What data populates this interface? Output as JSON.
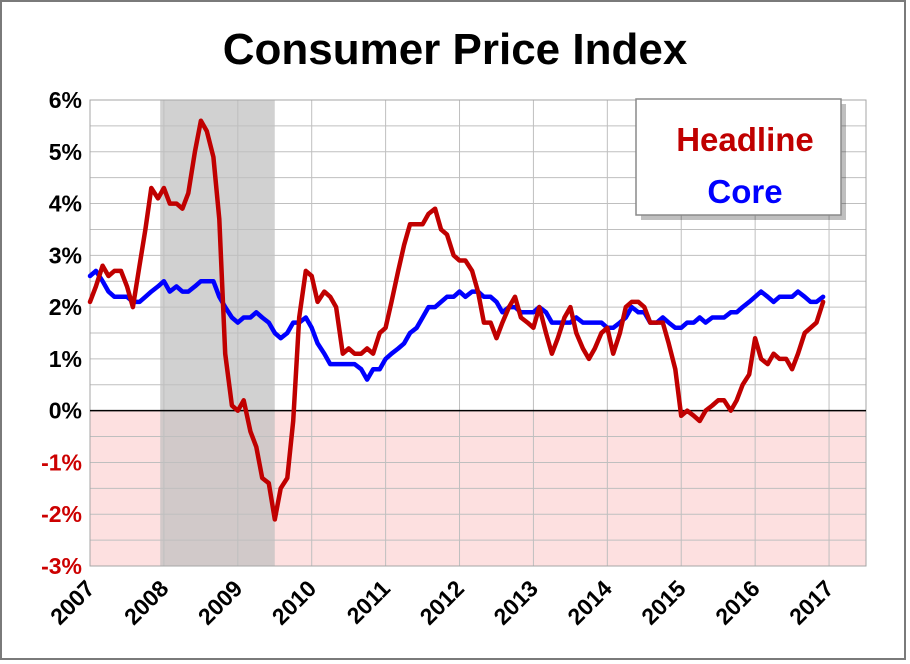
{
  "chart_data": {
    "type": "line",
    "title": "Consumer Price Index",
    "xlabel": "",
    "ylabel": "",
    "x_ticks": [
      "2007",
      "2008",
      "2009",
      "2010",
      "2011",
      "2012",
      "2013",
      "2014",
      "2015",
      "2016",
      "2017"
    ],
    "y_ticks": [
      "6%",
      "5%",
      "4%",
      "3%",
      "2%",
      "1%",
      "0%",
      "-1%",
      "-2%",
      "-3%"
    ],
    "xlim": [
      2007,
      2017.5
    ],
    "ylim": [
      -3,
      6
    ],
    "grid": true,
    "legend_position": "top-right",
    "negative_region_color": "#fde0e0",
    "negative_label_color": "#cc0000",
    "recession_shading": {
      "start": 2007.95,
      "end": 2009.5,
      "color": "#bfbfbf"
    },
    "series": [
      {
        "name": "Headline",
        "color": "#c00000",
        "points": [
          [
            2007.0,
            2.1
          ],
          [
            2007.08,
            2.4
          ],
          [
            2007.17,
            2.8
          ],
          [
            2007.25,
            2.6
          ],
          [
            2007.33,
            2.7
          ],
          [
            2007.42,
            2.7
          ],
          [
            2007.5,
            2.4
          ],
          [
            2007.58,
            2.0
          ],
          [
            2007.67,
            2.8
          ],
          [
            2007.75,
            3.5
          ],
          [
            2007.83,
            4.3
          ],
          [
            2007.92,
            4.1
          ],
          [
            2008.0,
            4.3
          ],
          [
            2008.08,
            4.0
          ],
          [
            2008.17,
            4.0
          ],
          [
            2008.25,
            3.9
          ],
          [
            2008.33,
            4.2
          ],
          [
            2008.42,
            5.0
          ],
          [
            2008.5,
            5.6
          ],
          [
            2008.58,
            5.4
          ],
          [
            2008.67,
            4.9
          ],
          [
            2008.75,
            3.7
          ],
          [
            2008.83,
            1.1
          ],
          [
            2008.92,
            0.1
          ],
          [
            2009.0,
            0.0
          ],
          [
            2009.08,
            0.2
          ],
          [
            2009.17,
            -0.4
          ],
          [
            2009.25,
            -0.7
          ],
          [
            2009.33,
            -1.3
          ],
          [
            2009.42,
            -1.4
          ],
          [
            2009.5,
            -2.1
          ],
          [
            2009.58,
            -1.5
          ],
          [
            2009.67,
            -1.3
          ],
          [
            2009.75,
            -0.2
          ],
          [
            2009.83,
            1.8
          ],
          [
            2009.92,
            2.7
          ],
          [
            2010.0,
            2.6
          ],
          [
            2010.08,
            2.1
          ],
          [
            2010.17,
            2.3
          ],
          [
            2010.25,
            2.2
          ],
          [
            2010.33,
            2.0
          ],
          [
            2010.42,
            1.1
          ],
          [
            2010.5,
            1.2
          ],
          [
            2010.58,
            1.1
          ],
          [
            2010.67,
            1.1
          ],
          [
            2010.75,
            1.2
          ],
          [
            2010.83,
            1.1
          ],
          [
            2010.92,
            1.5
          ],
          [
            2011.0,
            1.6
          ],
          [
            2011.08,
            2.1
          ],
          [
            2011.17,
            2.7
          ],
          [
            2011.25,
            3.2
          ],
          [
            2011.33,
            3.6
          ],
          [
            2011.42,
            3.6
          ],
          [
            2011.5,
            3.6
          ],
          [
            2011.58,
            3.8
          ],
          [
            2011.67,
            3.9
          ],
          [
            2011.75,
            3.5
          ],
          [
            2011.83,
            3.4
          ],
          [
            2011.92,
            3.0
          ],
          [
            2012.0,
            2.9
          ],
          [
            2012.08,
            2.9
          ],
          [
            2012.17,
            2.7
          ],
          [
            2012.25,
            2.3
          ],
          [
            2012.33,
            1.7
          ],
          [
            2012.42,
            1.7
          ],
          [
            2012.5,
            1.4
          ],
          [
            2012.58,
            1.7
          ],
          [
            2012.67,
            2.0
          ],
          [
            2012.75,
            2.2
          ],
          [
            2012.83,
            1.8
          ],
          [
            2012.92,
            1.7
          ],
          [
            2013.0,
            1.6
          ],
          [
            2013.08,
            2.0
          ],
          [
            2013.17,
            1.5
          ],
          [
            2013.25,
            1.1
          ],
          [
            2013.33,
            1.4
          ],
          [
            2013.42,
            1.8
          ],
          [
            2013.5,
            2.0
          ],
          [
            2013.58,
            1.5
          ],
          [
            2013.67,
            1.2
          ],
          [
            2013.75,
            1.0
          ],
          [
            2013.83,
            1.2
          ],
          [
            2013.92,
            1.5
          ],
          [
            2014.0,
            1.6
          ],
          [
            2014.08,
            1.1
          ],
          [
            2014.17,
            1.5
          ],
          [
            2014.25,
            2.0
          ],
          [
            2014.33,
            2.1
          ],
          [
            2014.42,
            2.1
          ],
          [
            2014.5,
            2.0
          ],
          [
            2014.58,
            1.7
          ],
          [
            2014.67,
            1.7
          ],
          [
            2014.75,
            1.7
          ],
          [
            2014.83,
            1.3
          ],
          [
            2014.92,
            0.8
          ],
          [
            2015.0,
            -0.1
          ],
          [
            2015.08,
            0.0
          ],
          [
            2015.17,
            -0.1
          ],
          [
            2015.25,
            -0.2
          ],
          [
            2015.33,
            0.0
          ],
          [
            2015.42,
            0.1
          ],
          [
            2015.5,
            0.2
          ],
          [
            2015.58,
            0.2
          ],
          [
            2015.67,
            0.0
          ],
          [
            2015.75,
            0.2
          ],
          [
            2015.83,
            0.5
          ],
          [
            2015.92,
            0.7
          ],
          [
            2016.0,
            1.4
          ],
          [
            2016.08,
            1.0
          ],
          [
            2016.17,
            0.9
          ],
          [
            2016.25,
            1.1
          ],
          [
            2016.33,
            1.0
          ],
          [
            2016.42,
            1.0
          ],
          [
            2016.5,
            0.8
          ],
          [
            2016.58,
            1.1
          ],
          [
            2016.67,
            1.5
          ],
          [
            2016.75,
            1.6
          ],
          [
            2016.83,
            1.7
          ],
          [
            2016.92,
            2.1
          ]
        ]
      },
      {
        "name": "Core",
        "color": "#0000ff",
        "points": [
          [
            2007.0,
            2.6
          ],
          [
            2007.08,
            2.7
          ],
          [
            2007.17,
            2.5
          ],
          [
            2007.25,
            2.3
          ],
          [
            2007.33,
            2.2
          ],
          [
            2007.42,
            2.2
          ],
          [
            2007.5,
            2.2
          ],
          [
            2007.58,
            2.1
          ],
          [
            2007.67,
            2.1
          ],
          [
            2007.75,
            2.2
          ],
          [
            2007.83,
            2.3
          ],
          [
            2007.92,
            2.4
          ],
          [
            2008.0,
            2.5
          ],
          [
            2008.08,
            2.3
          ],
          [
            2008.17,
            2.4
          ],
          [
            2008.25,
            2.3
          ],
          [
            2008.33,
            2.3
          ],
          [
            2008.42,
            2.4
          ],
          [
            2008.5,
            2.5
          ],
          [
            2008.58,
            2.5
          ],
          [
            2008.67,
            2.5
          ],
          [
            2008.75,
            2.2
          ],
          [
            2008.83,
            2.0
          ],
          [
            2008.92,
            1.8
          ],
          [
            2009.0,
            1.7
          ],
          [
            2009.08,
            1.8
          ],
          [
            2009.17,
            1.8
          ],
          [
            2009.25,
            1.9
          ],
          [
            2009.33,
            1.8
          ],
          [
            2009.42,
            1.7
          ],
          [
            2009.5,
            1.5
          ],
          [
            2009.58,
            1.4
          ],
          [
            2009.67,
            1.5
          ],
          [
            2009.75,
            1.7
          ],
          [
            2009.83,
            1.7
          ],
          [
            2009.92,
            1.8
          ],
          [
            2010.0,
            1.6
          ],
          [
            2010.08,
            1.3
          ],
          [
            2010.17,
            1.1
          ],
          [
            2010.25,
            0.9
          ],
          [
            2010.33,
            0.9
          ],
          [
            2010.42,
            0.9
          ],
          [
            2010.5,
            0.9
          ],
          [
            2010.58,
            0.9
          ],
          [
            2010.67,
            0.8
          ],
          [
            2010.75,
            0.6
          ],
          [
            2010.83,
            0.8
          ],
          [
            2010.92,
            0.8
          ],
          [
            2011.0,
            1.0
          ],
          [
            2011.08,
            1.1
          ],
          [
            2011.17,
            1.2
          ],
          [
            2011.25,
            1.3
          ],
          [
            2011.33,
            1.5
          ],
          [
            2011.42,
            1.6
          ],
          [
            2011.5,
            1.8
          ],
          [
            2011.58,
            2.0
          ],
          [
            2011.67,
            2.0
          ],
          [
            2011.75,
            2.1
          ],
          [
            2011.83,
            2.2
          ],
          [
            2011.92,
            2.2
          ],
          [
            2012.0,
            2.3
          ],
          [
            2012.08,
            2.2
          ],
          [
            2012.17,
            2.3
          ],
          [
            2012.25,
            2.3
          ],
          [
            2012.33,
            2.2
          ],
          [
            2012.42,
            2.2
          ],
          [
            2012.5,
            2.1
          ],
          [
            2012.58,
            1.9
          ],
          [
            2012.67,
            2.0
          ],
          [
            2012.75,
            2.0
          ],
          [
            2012.83,
            1.9
          ],
          [
            2012.92,
            1.9
          ],
          [
            2013.0,
            1.9
          ],
          [
            2013.08,
            2.0
          ],
          [
            2013.17,
            1.9
          ],
          [
            2013.25,
            1.7
          ],
          [
            2013.33,
            1.7
          ],
          [
            2013.42,
            1.7
          ],
          [
            2013.5,
            1.7
          ],
          [
            2013.58,
            1.8
          ],
          [
            2013.67,
            1.7
          ],
          [
            2013.75,
            1.7
          ],
          [
            2013.83,
            1.7
          ],
          [
            2013.92,
            1.7
          ],
          [
            2014.0,
            1.6
          ],
          [
            2014.08,
            1.6
          ],
          [
            2014.17,
            1.7
          ],
          [
            2014.25,
            1.8
          ],
          [
            2014.33,
            2.0
          ],
          [
            2014.42,
            1.9
          ],
          [
            2014.5,
            1.9
          ],
          [
            2014.58,
            1.7
          ],
          [
            2014.67,
            1.7
          ],
          [
            2014.75,
            1.8
          ],
          [
            2014.83,
            1.7
          ],
          [
            2014.92,
            1.6
          ],
          [
            2015.0,
            1.6
          ],
          [
            2015.08,
            1.7
          ],
          [
            2015.17,
            1.7
          ],
          [
            2015.25,
            1.8
          ],
          [
            2015.33,
            1.7
          ],
          [
            2015.42,
            1.8
          ],
          [
            2015.5,
            1.8
          ],
          [
            2015.58,
            1.8
          ],
          [
            2015.67,
            1.9
          ],
          [
            2015.75,
            1.9
          ],
          [
            2015.83,
            2.0
          ],
          [
            2015.92,
            2.1
          ],
          [
            2016.0,
            2.2
          ],
          [
            2016.08,
            2.3
          ],
          [
            2016.17,
            2.2
          ],
          [
            2016.25,
            2.1
          ],
          [
            2016.33,
            2.2
          ],
          [
            2016.42,
            2.2
          ],
          [
            2016.5,
            2.2
          ],
          [
            2016.58,
            2.3
          ],
          [
            2016.67,
            2.2
          ],
          [
            2016.75,
            2.1
          ],
          [
            2016.83,
            2.1
          ],
          [
            2016.92,
            2.2
          ]
        ]
      }
    ]
  }
}
